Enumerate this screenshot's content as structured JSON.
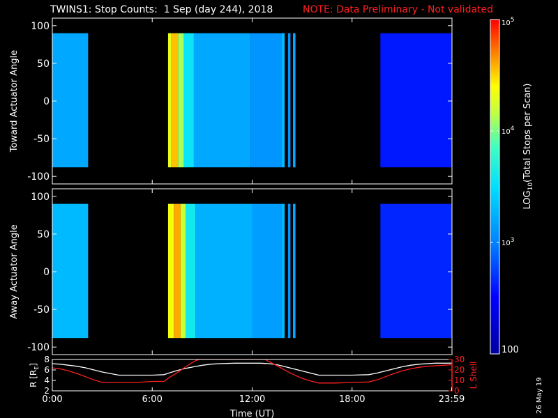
{
  "header": {
    "title": "TWINS1: Stop Counts:  1 Sep (day 244), 2018",
    "note": "NOTE: Data Preliminary - Not validated"
  },
  "date_stamp": "26 May 19",
  "colors": {
    "background": "#000000",
    "note": "#ff2020",
    "axis": "#ffffff",
    "lshell_line": "#ff2020",
    "r_line": "#ffffff"
  },
  "chart_data": [
    {
      "type": "heatmap",
      "id": "toward",
      "ylabel": "Toward Actuator Angle",
      "ylim": [
        -110,
        110
      ],
      "yticks": [
        100,
        50,
        0,
        -50,
        -100
      ],
      "xlim": [
        0,
        24
      ],
      "data_extent_y": [
        -88,
        90
      ],
      "bands": [
        {
          "t0": 0.0,
          "t1": 2.15,
          "log": 3.2
        },
        {
          "t0": 6.95,
          "t1": 7.15,
          "log": 4.3
        },
        {
          "t0": 7.15,
          "t1": 7.55,
          "log": 4.55
        },
        {
          "t0": 7.55,
          "t1": 7.9,
          "log": 4.1
        },
        {
          "t0": 7.9,
          "t1": 8.5,
          "log": 3.55
        },
        {
          "t0": 8.5,
          "t1": 11.9,
          "log": 3.2
        },
        {
          "t0": 11.9,
          "t1": 13.75,
          "log": 3.1
        },
        {
          "t0": 13.75,
          "t1": 13.95,
          "log": 3.3
        },
        {
          "t0": 14.15,
          "t1": 14.3,
          "log": 3.1
        },
        {
          "t0": 14.45,
          "t1": 14.6,
          "log": 3.2
        },
        {
          "t0": 19.7,
          "t1": 24.0,
          "log": 2.6
        }
      ]
    },
    {
      "type": "heatmap",
      "id": "away",
      "ylabel": "Away Actuator Angle",
      "ylim": [
        -110,
        110
      ],
      "yticks": [
        100,
        50,
        0,
        -50,
        -100
      ],
      "xlim": [
        0,
        24
      ],
      "data_extent_y": [
        -88,
        90
      ],
      "bands": [
        {
          "t0": 0.0,
          "t1": 2.15,
          "log": 3.3
        },
        {
          "t0": 6.95,
          "t1": 7.3,
          "log": 4.35
        },
        {
          "t0": 7.3,
          "t1": 7.7,
          "log": 4.6
        },
        {
          "t0": 7.7,
          "t1": 8.0,
          "log": 4.2
        },
        {
          "t0": 8.0,
          "t1": 8.6,
          "log": 3.6
        },
        {
          "t0": 8.6,
          "t1": 12.0,
          "log": 3.25
        },
        {
          "t0": 12.0,
          "t1": 13.75,
          "log": 3.15
        },
        {
          "t0": 13.75,
          "t1": 13.95,
          "log": 3.3
        },
        {
          "t0": 14.15,
          "t1": 14.3,
          "log": 3.1
        },
        {
          "t0": 14.45,
          "t1": 14.6,
          "log": 3.2
        },
        {
          "t0": 19.7,
          "t1": 24.0,
          "log": 2.65
        }
      ]
    },
    {
      "type": "line",
      "id": "orbit",
      "ylabel_left": "R [R",
      "ylabel_left_sub": "E",
      "ylabel_left_end": "]",
      "ylabel_right": "L Shell",
      "xlabel": "Time (UT)",
      "xlim": [
        0,
        24
      ],
      "xticks": [
        0,
        6,
        12,
        18,
        23.98
      ],
      "xticklabels": [
        "0:00",
        "6:00",
        "12:00",
        "18:00",
        "23:59"
      ],
      "ylim_left": [
        2,
        8
      ],
      "yticks_left": [
        2,
        4,
        6,
        8
      ],
      "ylim_right": [
        0,
        30
      ],
      "yticks_right": [
        0,
        10,
        20,
        30
      ],
      "series": [
        {
          "axis": "left",
          "x": [
            0,
            0.5,
            1,
            1.5,
            2,
            2.5,
            3,
            4,
            5,
            6,
            6.7,
            7,
            7.5,
            8,
            8.5,
            9,
            9.5,
            10,
            11,
            12,
            12.5,
            13,
            13.5,
            14,
            14.5,
            15,
            15.5,
            16,
            17,
            18,
            19,
            19.5,
            20,
            20.5,
            21,
            21.5,
            22,
            22.5,
            23,
            23.5,
            24
          ],
          "y": [
            7.2,
            7.1,
            6.9,
            6.7,
            6.4,
            6.0,
            5.6,
            5.0,
            5.0,
            5.0,
            5.1,
            5.4,
            5.9,
            6.3,
            6.6,
            6.9,
            7.1,
            7.2,
            7.3,
            7.3,
            7.3,
            7.2,
            7.0,
            6.6,
            6.2,
            5.8,
            5.4,
            5.0,
            5.0,
            5.0,
            5.1,
            5.4,
            5.8,
            6.2,
            6.6,
            6.9,
            7.1,
            7.2,
            7.3,
            7.3,
            7.3
          ]
        },
        {
          "axis": "right",
          "x": [
            0,
            0.5,
            1,
            1.5,
            2,
            2.5,
            3,
            4,
            5,
            6,
            6.7,
            7,
            7.5,
            8,
            8.5,
            8.8,
            9,
            12,
            12.5,
            12.8,
            13,
            13.5,
            14,
            14.5,
            15,
            15.5,
            16,
            17,
            18,
            19,
            19.5,
            20,
            20.5,
            21,
            21.5,
            22,
            22.5,
            23,
            23.5,
            24
          ],
          "y": [
            22.0,
            21.0,
            19.0,
            16.5,
            13.5,
            10.5,
            8.0,
            8.0,
            8.0,
            9.0,
            9.0,
            12.5,
            17.5,
            23.0,
            28.0,
            30.0,
            30.0,
            30.0,
            30.0,
            30.0,
            28.0,
            24.0,
            19.5,
            15.5,
            12.0,
            9.5,
            7.5,
            7.5,
            8.0,
            8.5,
            10.5,
            13.5,
            16.5,
            19.0,
            21.0,
            22.5,
            23.5,
            24.0,
            24.5,
            25.0
          ]
        }
      ]
    }
  ],
  "colorbar": {
    "label_pre": "LOG",
    "label_sub": "10",
    "label_post": "(Total Stops per Scan)",
    "ticks": [
      {
        "log": 5,
        "base": "10",
        "exp": "5"
      },
      {
        "log": 4,
        "base": "10",
        "exp": "4"
      },
      {
        "log": 3,
        "base": "10",
        "exp": "3"
      },
      {
        "log": 2,
        "base": "100",
        "exp": ""
      }
    ]
  }
}
